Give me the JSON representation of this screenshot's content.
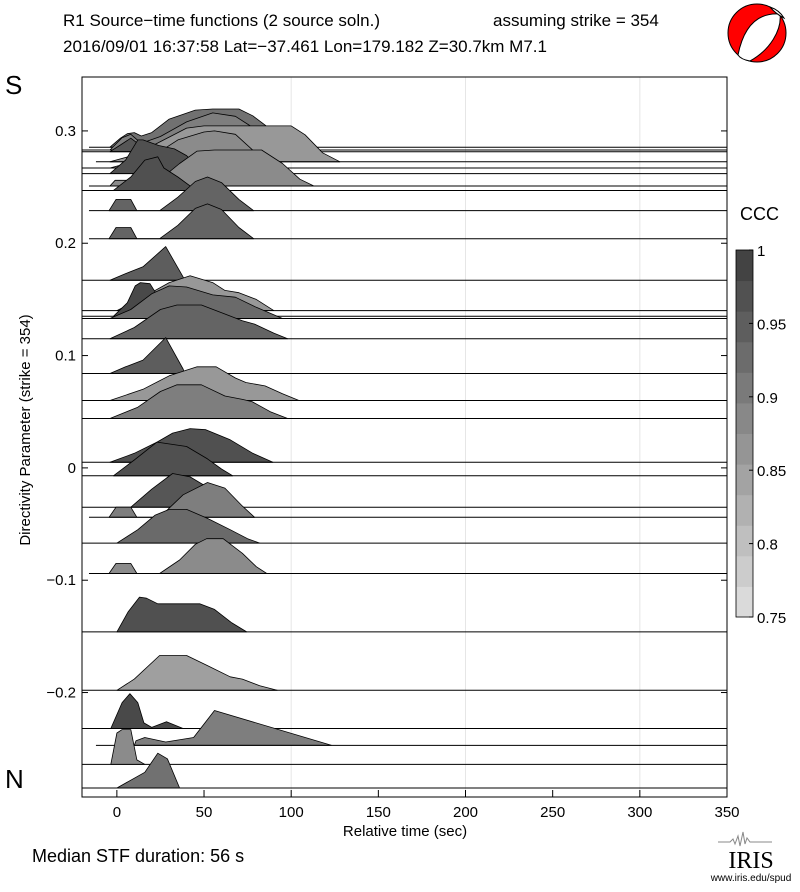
{
  "header": {
    "title": "R1 Source−time functions (2 source soln.)",
    "strike_note": "assuming strike = 354",
    "event_line": "2016/09/01 16:37:58  Lat=−37.461 Lon=179.182  Z=30.7km  M7.1"
  },
  "labels": {
    "south": "S",
    "north": "N",
    "median": "Median STF duration: 56 s",
    "colorbar_title": "CCC",
    "logo": "IRIS",
    "logo_url": "www.iris.edu/spud"
  },
  "colors": {
    "beachball": "#ff0000",
    "axis": "#000000",
    "grid": "#e6e6e6"
  },
  "chart_data": {
    "type": "area",
    "title": "R1 Source−time functions (2 source soln.)",
    "xlabel": "Relative time (sec)",
    "ylabel": "Directivity Parameter (strike = 354)",
    "xlim": [
      -20,
      350
    ],
    "ylim": [
      -0.293,
      0.348
    ],
    "xticks": [
      0,
      50,
      100,
      150,
      200,
      250,
      300,
      350
    ],
    "yticks": [
      0.3,
      0.2,
      0.1,
      0,
      -0.1,
      -0.2
    ],
    "ytick_labels": [
      "0.3",
      "0.2",
      "0.1",
      "0",
      "−0.1",
      "−0.2"
    ],
    "xgrid": [
      100,
      200,
      300
    ],
    "colorbar": {
      "min": 0.75,
      "max": 1,
      "levels": 12,
      "ticks": [
        1,
        0.95,
        0.9,
        0.85,
        0.8,
        0.75
      ],
      "tick_labels": [
        "1",
        "0.95",
        "0.9",
        "0.85",
        "0.8",
        "0.75"
      ]
    },
    "traces": [
      {
        "d": 0.2855,
        "ccc": 0.92,
        "start": -16,
        "pts": [
          [
            -4,
            0
          ],
          [
            2,
            0.008
          ],
          [
            6,
            0.012
          ],
          [
            10,
            0.013
          ],
          [
            14,
            0.01
          ],
          [
            20,
            0.013
          ],
          [
            30,
            0.025
          ],
          [
            45,
            0.033
          ],
          [
            55,
            0.034
          ],
          [
            70,
            0.034
          ],
          [
            78,
            0.028
          ],
          [
            95,
            0.008
          ],
          [
            108,
            0
          ]
        ]
      },
      {
        "d": 0.283,
        "ccc": 0.9,
        "start": -20,
        "pts": [
          [
            -4,
            0
          ],
          [
            3,
            0.011
          ],
          [
            8,
            0.014
          ],
          [
            14,
            0.006
          ],
          [
            25,
            0.012
          ],
          [
            40,
            0.025
          ],
          [
            55,
            0.033
          ],
          [
            68,
            0.03
          ],
          [
            78,
            0.02
          ],
          [
            90,
            0
          ]
        ]
      },
      {
        "d": 0.2815,
        "ccc": 0.96,
        "start": -20,
        "pts": [
          [
            -4,
            0
          ],
          [
            2,
            0.006
          ],
          [
            8,
            0.012
          ],
          [
            14,
            0.005
          ],
          [
            20,
            0
          ]
        ]
      },
      {
        "d": 0.2725,
        "ccc": 0.86,
        "start": -12,
        "pts": [
          [
            -4,
            0
          ],
          [
            10,
            0.006
          ],
          [
            25,
            0.018
          ],
          [
            40,
            0.03
          ],
          [
            50,
            0.032
          ],
          [
            100,
            0.032
          ],
          [
            108,
            0.024
          ],
          [
            118,
            0.008
          ],
          [
            128,
            0
          ]
        ]
      },
      {
        "d": 0.267,
        "ccc": 0.88,
        "start": -20,
        "pts": [
          [
            -4,
            0
          ],
          [
            20,
            0.01
          ],
          [
            35,
            0.025
          ],
          [
            50,
            0.032
          ],
          [
            56,
            0.033
          ],
          [
            68,
            0.03
          ],
          [
            80,
            0.013
          ],
          [
            86,
            0
          ]
        ]
      },
      {
        "d": 0.262,
        "ccc": 0.97,
        "start": -20,
        "pts": [
          [
            -4,
            0
          ],
          [
            5,
            0.012
          ],
          [
            12,
            0.03
          ],
          [
            15,
            0.03
          ],
          [
            24,
            0.025
          ],
          [
            33,
            0.022
          ],
          [
            40,
            0.016
          ],
          [
            45,
            0.008
          ],
          [
            52,
            0
          ]
        ]
      },
      {
        "d": 0.251,
        "ccc": 0.88,
        "start": -16,
        "pts": [
          [
            -4,
            0
          ],
          [
            -1,
            0.005
          ],
          [
            8,
            0.005
          ],
          [
            12,
            0
          ],
          [
            25,
            0.006
          ],
          [
            36,
            0.02
          ],
          [
            46,
            0.031
          ],
          [
            56,
            0.032
          ],
          [
            83,
            0.032
          ],
          [
            95,
            0.02
          ],
          [
            105,
            0.006
          ],
          [
            113,
            0
          ]
        ]
      },
      {
        "d": 0.247,
        "ccc": 0.97,
        "start": -20,
        "pts": [
          [
            -2,
            0
          ],
          [
            8,
            0.012
          ],
          [
            16,
            0.027
          ],
          [
            23.5,
            0.03
          ],
          [
            27,
            0.02
          ],
          [
            35,
            0.012
          ],
          [
            45.5,
            0
          ]
        ]
      },
      {
        "d": 0.229,
        "ccc": 0.94,
        "start": -16,
        "pts": [
          [
            -4.5,
            0
          ],
          [
            -0.5,
            0.01
          ],
          [
            8,
            0.01
          ],
          [
            11.5,
            0
          ],
          [
            24.5,
            0
          ],
          [
            35,
            0.012
          ],
          [
            45,
            0.026
          ],
          [
            52,
            0.03
          ],
          [
            60,
            0.025
          ],
          [
            70,
            0.01
          ],
          [
            78.5,
            0
          ]
        ]
      },
      {
        "d": 0.204,
        "ccc": 0.94,
        "start": -16,
        "pts": [
          [
            -4.5,
            0
          ],
          [
            -0.5,
            0.01
          ],
          [
            8,
            0.01
          ],
          [
            11.5,
            0
          ],
          [
            24.5,
            0
          ],
          [
            35,
            0.012
          ],
          [
            45,
            0.027
          ],
          [
            52,
            0.031
          ],
          [
            60,
            0.026
          ],
          [
            70,
            0.01
          ],
          [
            78.5,
            0
          ]
        ]
      },
      {
        "d": 0.167,
        "ccc": 0.95,
        "start": -20,
        "pts": [
          [
            -4,
            0
          ],
          [
            5,
            0.006
          ],
          [
            15,
            0.012
          ],
          [
            28,
            0.03
          ],
          [
            38,
            0.003
          ],
          [
            39,
            0
          ]
        ]
      },
      {
        "d": 0.14,
        "ccc": 0.86,
        "start": -20,
        "pts": [
          [
            0,
            0
          ],
          [
            15,
            0.012
          ],
          [
            30,
            0.025
          ],
          [
            42,
            0.031
          ],
          [
            55,
            0.025
          ],
          [
            62,
            0.018
          ],
          [
            70,
            0.016
          ],
          [
            80,
            0.01
          ],
          [
            90,
            0
          ]
        ]
      },
      {
        "d": 0.135,
        "ccc": 0.98,
        "start": -20,
        "pts": [
          [
            -2,
            0
          ],
          [
            6,
            0.012
          ],
          [
            10.5,
            0.027
          ],
          [
            13.5,
            0.03
          ],
          [
            19,
            0.029
          ],
          [
            21,
            0.024
          ],
          [
            26,
            0.012
          ],
          [
            30,
            0
          ]
        ]
      },
      {
        "d": 0.133,
        "ccc": 0.93,
        "start": -20,
        "pts": [
          [
            -4,
            0
          ],
          [
            8,
            0.008
          ],
          [
            20,
            0.022
          ],
          [
            30,
            0.029
          ],
          [
            40,
            0.028
          ],
          [
            55,
            0.021
          ],
          [
            68,
            0.019
          ],
          [
            80,
            0.01
          ],
          [
            95,
            0
          ]
        ]
      },
      {
        "d": 0.115,
        "ccc": 0.94,
        "start": -20,
        "pts": [
          [
            -4,
            0
          ],
          [
            10,
            0.01
          ],
          [
            25,
            0.026
          ],
          [
            34.5,
            0.03
          ],
          [
            48.5,
            0.03
          ],
          [
            62,
            0.022
          ],
          [
            72,
            0.016
          ],
          [
            79,
            0.013
          ],
          [
            90,
            0.005
          ],
          [
            98,
            0
          ]
        ]
      },
      {
        "d": 0.084,
        "ccc": 0.95,
        "start": -20,
        "pts": [
          [
            -4,
            0
          ],
          [
            5,
            0.006
          ],
          [
            15,
            0.012
          ],
          [
            28,
            0.032
          ],
          [
            38,
            0.004
          ],
          [
            39,
            0
          ]
        ]
      },
      {
        "d": 0.06,
        "ccc": 0.86,
        "start": -20,
        "pts": [
          [
            -4,
            0
          ],
          [
            15,
            0.01
          ],
          [
            30,
            0.022
          ],
          [
            46,
            0.03
          ],
          [
            57,
            0.03
          ],
          [
            68,
            0.02
          ],
          [
            74,
            0.016
          ],
          [
            85,
            0.013
          ],
          [
            95,
            0.006
          ],
          [
            104.5,
            0
          ]
        ]
      },
      {
        "d": 0.044,
        "ccc": 0.9,
        "start": -20,
        "pts": [
          [
            -4,
            0
          ],
          [
            12,
            0.01
          ],
          [
            25,
            0.024
          ],
          [
            34.5,
            0.03
          ],
          [
            48.5,
            0.03
          ],
          [
            62,
            0.02
          ],
          [
            72,
            0.017
          ],
          [
            77.5,
            0.015
          ],
          [
            88,
            0.006
          ],
          [
            98,
            0
          ]
        ]
      },
      {
        "d": 0.005,
        "ccc": 0.97,
        "start": -20,
        "pts": [
          [
            -4,
            0
          ],
          [
            10,
            0.008
          ],
          [
            23,
            0.018
          ],
          [
            32,
            0.026
          ],
          [
            42,
            0.03
          ],
          [
            51,
            0.029
          ],
          [
            65,
            0.02
          ],
          [
            78,
            0.008
          ],
          [
            89.5,
            0
          ]
        ]
      },
      {
        "d": -0.007,
        "ccc": 0.97,
        "start": -20,
        "pts": [
          [
            -2,
            0
          ],
          [
            10,
            0.014
          ],
          [
            23,
            0.03
          ],
          [
            40,
            0.026
          ],
          [
            52,
            0.015
          ],
          [
            60,
            0.006
          ],
          [
            66.5,
            0
          ]
        ]
      },
      {
        "d": -0.035,
        "ccc": 0.96,
        "start": -20,
        "pts": [
          [
            8,
            0
          ],
          [
            20,
            0.016
          ],
          [
            32,
            0.03
          ],
          [
            42,
            0.027
          ],
          [
            55,
            0.015
          ],
          [
            65,
            0.005
          ],
          [
            72,
            0
          ]
        ]
      },
      {
        "d": -0.044,
        "ccc": 0.9,
        "start": -16,
        "pts": [
          [
            -4.5,
            0
          ],
          [
            -0.5,
            0.009
          ],
          [
            8,
            0.009
          ],
          [
            11.5,
            0
          ],
          [
            24.5,
            0
          ],
          [
            38,
            0.02
          ],
          [
            52,
            0.031
          ],
          [
            62,
            0.026
          ],
          [
            72,
            0.01
          ],
          [
            79,
            0
          ]
        ]
      },
      {
        "d": -0.067,
        "ccc": 0.93,
        "start": -20,
        "pts": [
          [
            0,
            0
          ],
          [
            12,
            0.012
          ],
          [
            22,
            0.025
          ],
          [
            30,
            0.03
          ],
          [
            40,
            0.03
          ],
          [
            52,
            0.022
          ],
          [
            65,
            0.012
          ],
          [
            75,
            0.004
          ],
          [
            82,
            0
          ]
        ]
      },
      {
        "d": -0.094,
        "ccc": 0.88,
        "start": -16,
        "pts": [
          [
            -4.5,
            0
          ],
          [
            -0.5,
            0.009
          ],
          [
            8,
            0.009
          ],
          [
            11.5,
            0
          ],
          [
            24.5,
            0
          ],
          [
            36,
            0.012
          ],
          [
            45,
            0.026
          ],
          [
            51.5,
            0.031
          ],
          [
            61,
            0.031
          ],
          [
            72,
            0.018
          ],
          [
            80,
            0.006
          ],
          [
            86,
            0
          ]
        ]
      },
      {
        "d": -0.146,
        "ccc": 0.97,
        "start": -20,
        "pts": [
          [
            0,
            0
          ],
          [
            6.5,
            0.018
          ],
          [
            13,
            0.031
          ],
          [
            17,
            0.03
          ],
          [
            23.5,
            0.025
          ],
          [
            47.5,
            0.025
          ],
          [
            56,
            0.02
          ],
          [
            66,
            0.008
          ],
          [
            74.5,
            0
          ]
        ]
      },
      {
        "d": -0.198,
        "ccc": 0.85,
        "start": -20,
        "pts": [
          [
            0,
            0
          ],
          [
            10,
            0.01
          ],
          [
            24.5,
            0.031
          ],
          [
            40,
            0.031
          ],
          [
            52,
            0.022
          ],
          [
            65,
            0.012
          ],
          [
            72,
            0.01
          ],
          [
            82,
            0.004
          ],
          [
            92,
            0
          ]
        ]
      },
      {
        "d": -0.232,
        "ccc": 0.98,
        "start": -20,
        "pts": [
          [
            -3.5,
            0
          ],
          [
            3,
            0.023
          ],
          [
            7.5,
            0.031
          ],
          [
            12,
            0.023
          ],
          [
            15.5,
            0.005
          ],
          [
            20,
            0.001
          ],
          [
            28.5,
            0.006
          ],
          [
            38,
            0
          ]
        ]
      },
      {
        "d": -0.247,
        "ccc": 0.9,
        "start": -12,
        "pts": [
          [
            10,
            0
          ],
          [
            11,
            0.004
          ],
          [
            16,
            0.007
          ],
          [
            28,
            0.003
          ],
          [
            44,
            0.007
          ],
          [
            56,
            0.031
          ],
          [
            123,
            0
          ]
        ]
      },
      {
        "d": -0.264,
        "ccc": 0.88,
        "start": -20,
        "pts": [
          [
            -3.5,
            0
          ],
          [
            0,
            0.028
          ],
          [
            3,
            0.031
          ],
          [
            8,
            0.031
          ],
          [
            11.5,
            0.004
          ],
          [
            16,
            0
          ]
        ]
      },
      {
        "d": -0.285,
        "ccc": 0.92,
        "start": -20,
        "pts": [
          [
            0,
            0
          ],
          [
            16,
            0.014
          ],
          [
            23.5,
            0.031
          ],
          [
            29,
            0.026
          ],
          [
            36,
            0
          ]
        ]
      }
    ]
  }
}
